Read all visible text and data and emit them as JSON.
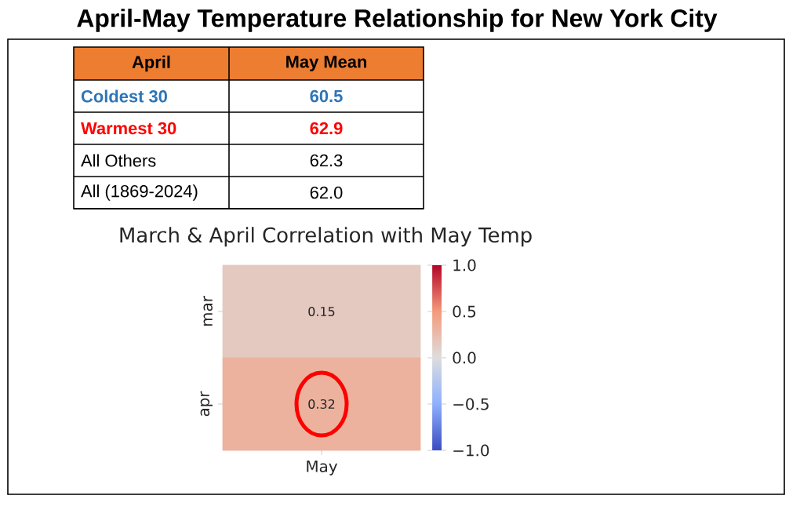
{
  "chart_data": [
    {
      "type": "other",
      "title": "April-May Temperature Relationship for New York City",
      "annotations": [
        "April",
        "May Mean"
      ],
      "categories": [
        "Coldest 30",
        "Warmest 30",
        "All Others",
        "All (1869-2024)"
      ],
      "value_labels": [
        "60.5",
        "62.9",
        "62.3",
        "62.0"
      ],
      "colors": [
        "#2e75b6",
        "#ff0000",
        "#000000",
        "#000000"
      ]
    },
    {
      "type": "heatmap",
      "title": "March & April Correlation with May Temp",
      "categories": [
        "May"
      ],
      "y_categories": [
        "mar",
        "apr"
      ],
      "cells": [
        [
          0.15
        ],
        [
          0.32
        ]
      ],
      "data_labels": true,
      "clim": [
        -1,
        1
      ],
      "cticks": [
        {
          "value": -1,
          "label": "−1.0"
        },
        {
          "value": -0.5,
          "label": "−0.5"
        },
        {
          "value": 0,
          "label": "0.0"
        },
        0.5,
        {
          "value": 1,
          "label": "1.0"
        }
      ]
    }
  ]
}
